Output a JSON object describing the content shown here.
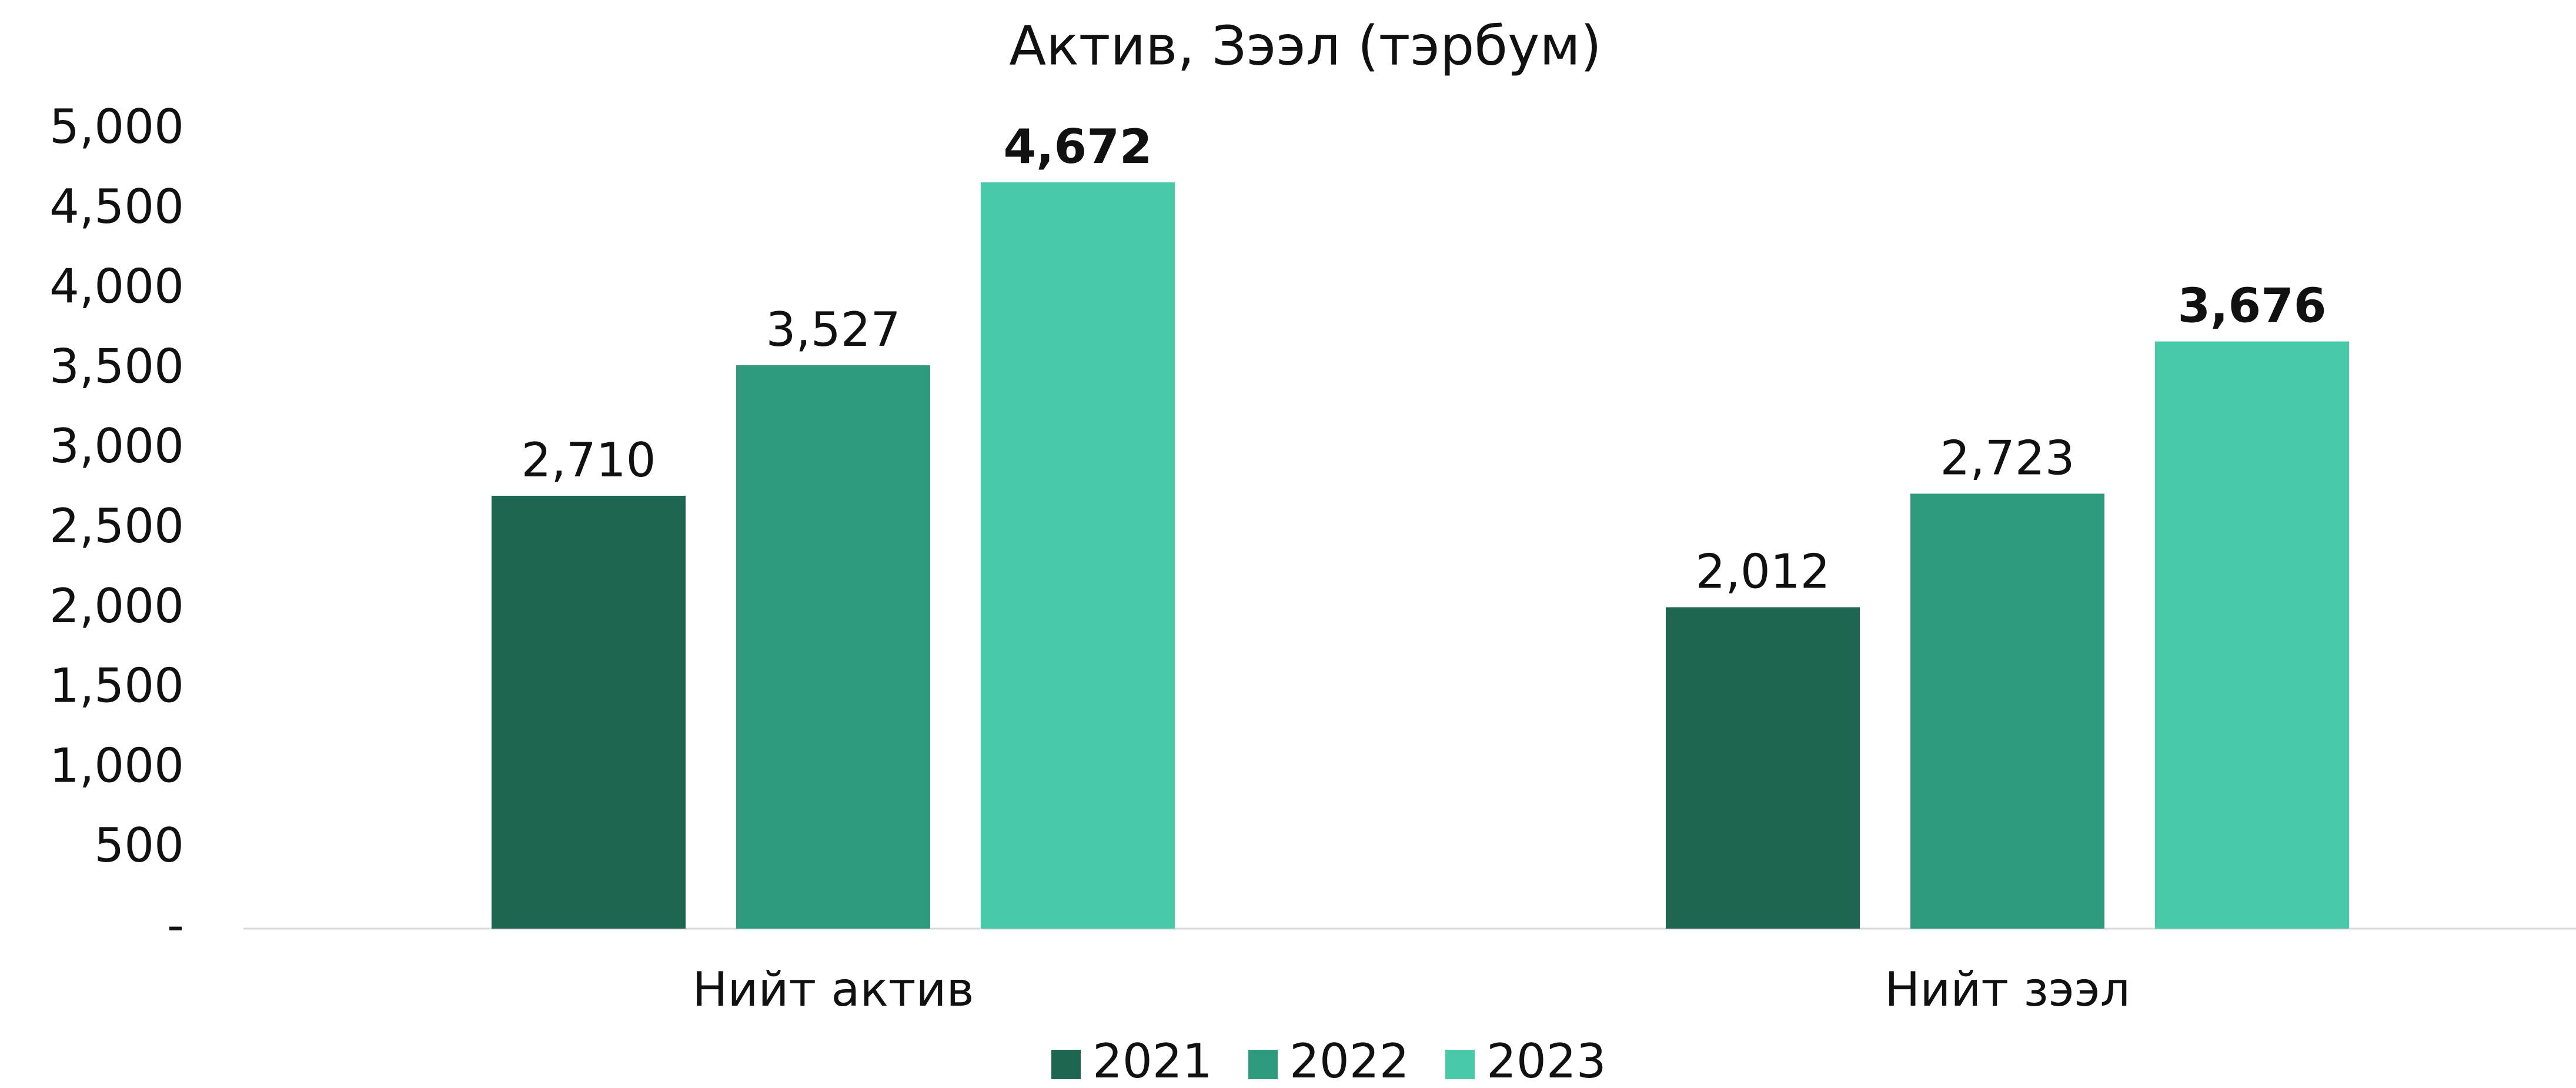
{
  "chart_data": {
    "type": "bar",
    "title": "Актив, Зээл (тэрбум)",
    "categories": [
      "Нийт актив",
      "Нийт зээл"
    ],
    "series": [
      {
        "name": "2021",
        "color": "#1e6652",
        "values": [
          2710,
          2012
        ],
        "value_labels": [
          "2,710",
          "2,012"
        ]
      },
      {
        "name": "2022",
        "color": "#2e9b7e",
        "values": [
          3527,
          2723
        ],
        "value_labels": [
          "3,527",
          "2,723"
        ]
      },
      {
        "name": "2023",
        "color": "#48c9a8",
        "values": [
          4672,
          3676
        ],
        "value_labels": [
          "4,672",
          "3,676"
        ],
        "bold": true
      }
    ],
    "ylim": [
      0,
      5000
    ],
    "yticks": [
      {
        "value": 0,
        "label": "-"
      },
      500,
      {
        "value": 1000,
        "label": "1,000"
      },
      {
        "value": 1500,
        "label": "1,500"
      },
      {
        "value": 2000,
        "label": "2,000"
      },
      {
        "value": 2500,
        "label": "2,500"
      },
      {
        "value": 3000,
        "label": "3,000"
      },
      {
        "value": 3500,
        "label": "3,500"
      },
      {
        "value": 4000,
        "label": "4,000"
      },
      {
        "value": 4500,
        "label": "4,500"
      },
      {
        "value": 5000,
        "label": "5,000"
      }
    ],
    "grid": false,
    "legend": "bottom"
  }
}
